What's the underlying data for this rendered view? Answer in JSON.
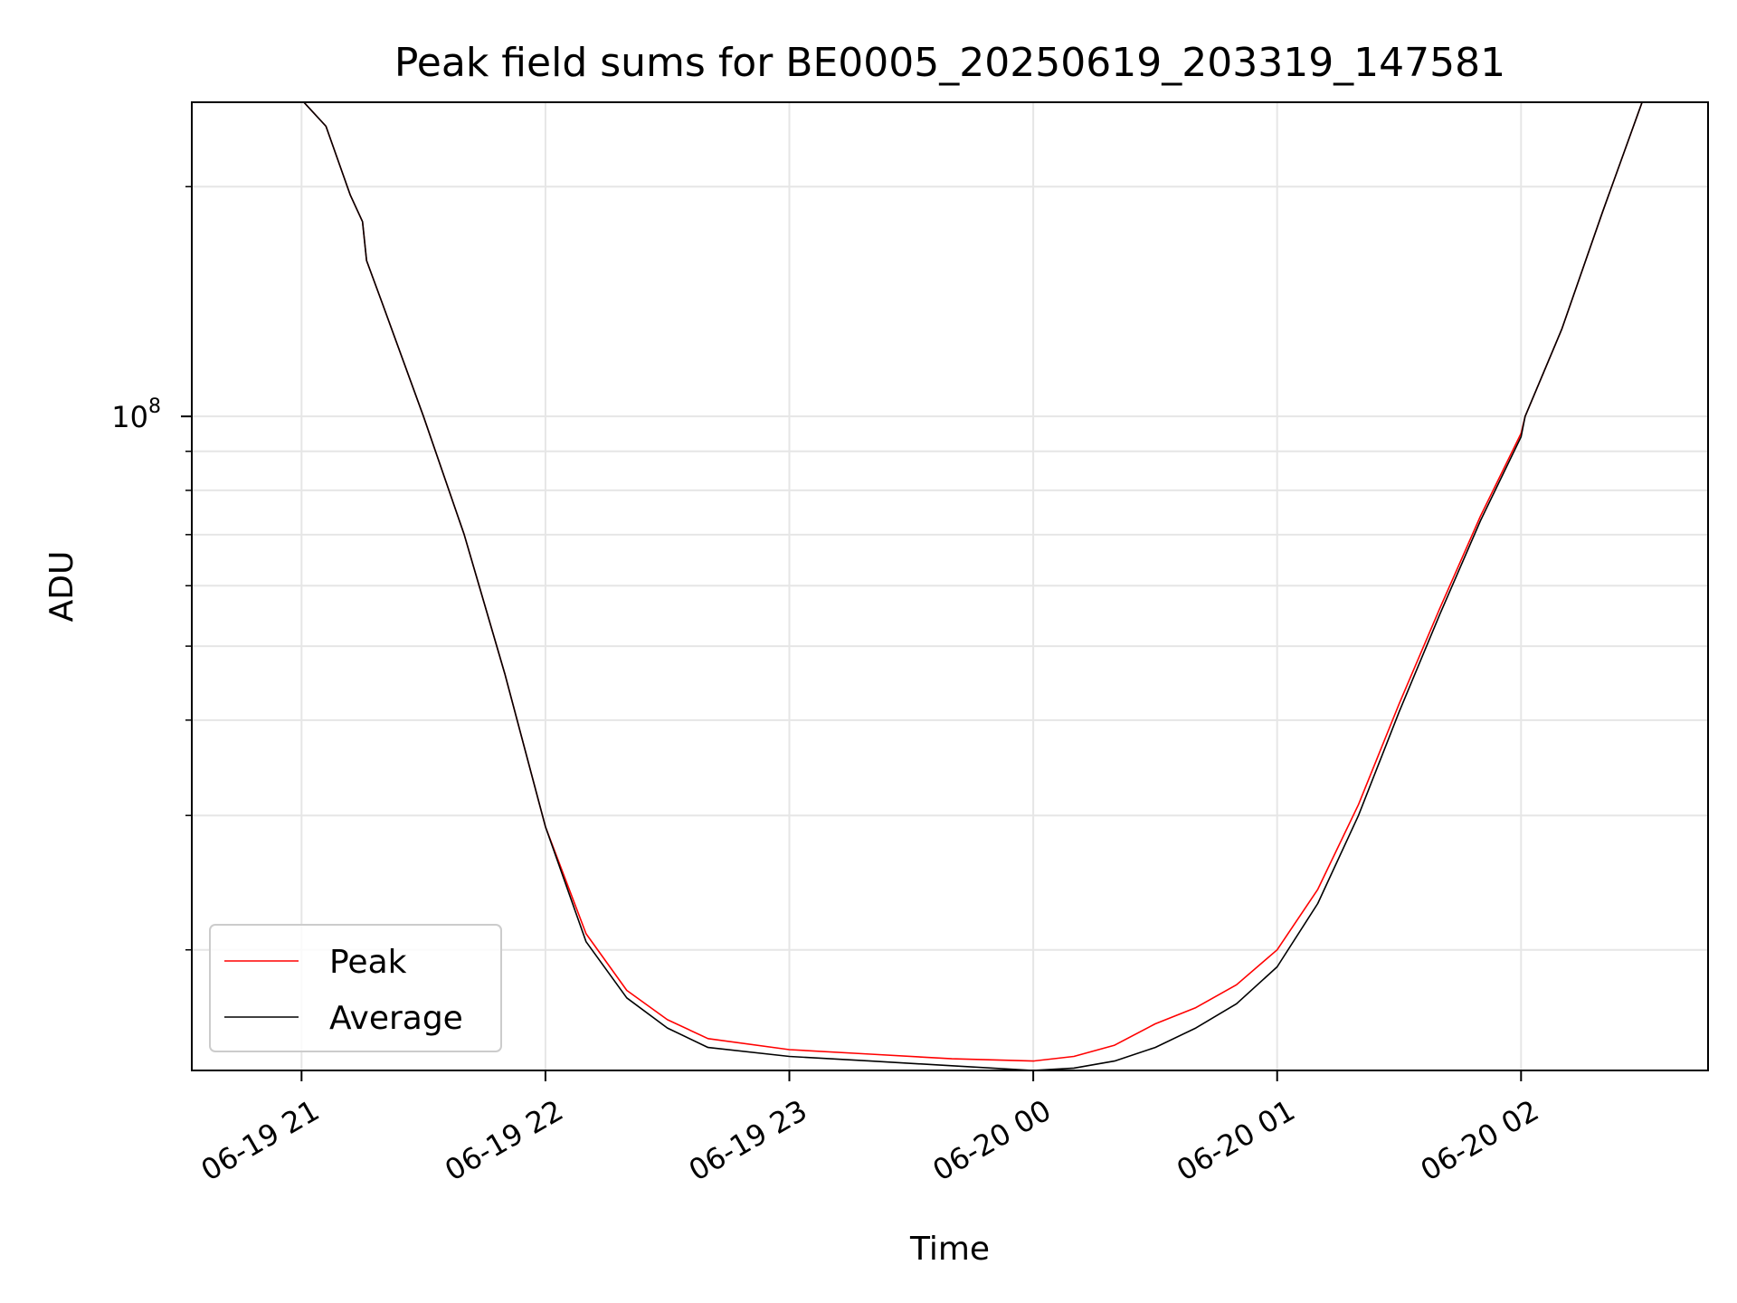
{
  "chart_data": {
    "type": "line",
    "title": "Peak field sums for BE0005_20250619_203319_147581",
    "xlabel": "Time",
    "ylabel": "ADU",
    "y_scale": "log",
    "grid": true,
    "legend_placement": "lower-left",
    "xlim": [
      "2025-06-19 20:33",
      "2025-06-20 02:46"
    ],
    "ylim": [
      13900000,
      258000000
    ],
    "x_ticks": [
      {
        "value": "2025-06-19 21:00",
        "label": "06-19 21"
      },
      {
        "value": "2025-06-19 22:00",
        "label": "06-19 22"
      },
      {
        "value": "2025-06-19 23:00",
        "label": "06-19 23"
      },
      {
        "value": "2025-06-20 00:00",
        "label": "06-20 00"
      },
      {
        "value": "2025-06-20 01:00",
        "label": "06-20 01"
      },
      {
        "value": "2025-06-20 02:00",
        "label": "06-20 02"
      }
    ],
    "y_major_ticks": [
      {
        "value": 100000000,
        "base": "10",
        "exponent": "8"
      }
    ],
    "y_minor_ticks": [
      20000000,
      30000000,
      40000000,
      50000000,
      60000000,
      70000000,
      80000000,
      90000000,
      200000000
    ],
    "series": [
      {
        "name": "Peak",
        "color": "#ff0000",
        "x": [
          "2025-06-19 21:00",
          "2025-06-19 21:06",
          "2025-06-19 21:12",
          "2025-06-19 21:15",
          "2025-06-19 21:16",
          "2025-06-19 21:20",
          "2025-06-19 21:30",
          "2025-06-19 21:40",
          "2025-06-19 21:50",
          "2025-06-19 22:00",
          "2025-06-19 22:10",
          "2025-06-19 22:20",
          "2025-06-19 22:30",
          "2025-06-19 22:40",
          "2025-06-19 23:00",
          "2025-06-19 23:20",
          "2025-06-19 23:40",
          "2025-06-20 00:00",
          "2025-06-20 00:10",
          "2025-06-20 00:20",
          "2025-06-20 00:30",
          "2025-06-20 00:40",
          "2025-06-20 00:50",
          "2025-06-20 01:00",
          "2025-06-20 01:10",
          "2025-06-20 01:20",
          "2025-06-20 01:30",
          "2025-06-20 01:40",
          "2025-06-20 01:50",
          "2025-06-20 02:00",
          "2025-06-20 02:01",
          "2025-06-20 02:10",
          "2025-06-20 02:20",
          "2025-06-20 02:30"
        ],
        "values": [
          260000000,
          240000000,
          195000000,
          180000000,
          160000000,
          140000000,
          100000000,
          70000000,
          46000000,
          29000000,
          21000000,
          17700000,
          16200000,
          15300000,
          14800000,
          14600000,
          14400000,
          14300000,
          14500000,
          15000000,
          16000000,
          16800000,
          18000000,
          20000000,
          24000000,
          31000000,
          42000000,
          56000000,
          74000000,
          95000000,
          100000000,
          130000000,
          185000000,
          260000000
        ]
      },
      {
        "name": "Average",
        "color": "#000000",
        "x": [
          "2025-06-19 21:00",
          "2025-06-19 21:06",
          "2025-06-19 21:12",
          "2025-06-19 21:15",
          "2025-06-19 21:16",
          "2025-06-19 21:20",
          "2025-06-19 21:30",
          "2025-06-19 21:40",
          "2025-06-19 21:50",
          "2025-06-19 22:00",
          "2025-06-19 22:10",
          "2025-06-19 22:20",
          "2025-06-19 22:30",
          "2025-06-19 22:40",
          "2025-06-19 23:00",
          "2025-06-19 23:20",
          "2025-06-19 23:40",
          "2025-06-20 00:00",
          "2025-06-20 00:10",
          "2025-06-20 00:20",
          "2025-06-20 00:30",
          "2025-06-20 00:40",
          "2025-06-20 00:50",
          "2025-06-20 01:00",
          "2025-06-20 01:10",
          "2025-06-20 01:20",
          "2025-06-20 01:30",
          "2025-06-20 01:40",
          "2025-06-20 01:50",
          "2025-06-20 02:00",
          "2025-06-20 02:01",
          "2025-06-20 02:10",
          "2025-06-20 02:20",
          "2025-06-20 02:30"
        ],
        "values": [
          260000000,
          240000000,
          195000000,
          180000000,
          160000000,
          140000000,
          100000000,
          70000000,
          46000000,
          29000000,
          20500000,
          17300000,
          15800000,
          14900000,
          14500000,
          14300000,
          14100000,
          13900000,
          14000000,
          14300000,
          14900000,
          15800000,
          17000000,
          19000000,
          23000000,
          30000000,
          41000000,
          55000000,
          73000000,
          94000000,
          100000000,
          130000000,
          185000000,
          260000000
        ]
      }
    ]
  }
}
